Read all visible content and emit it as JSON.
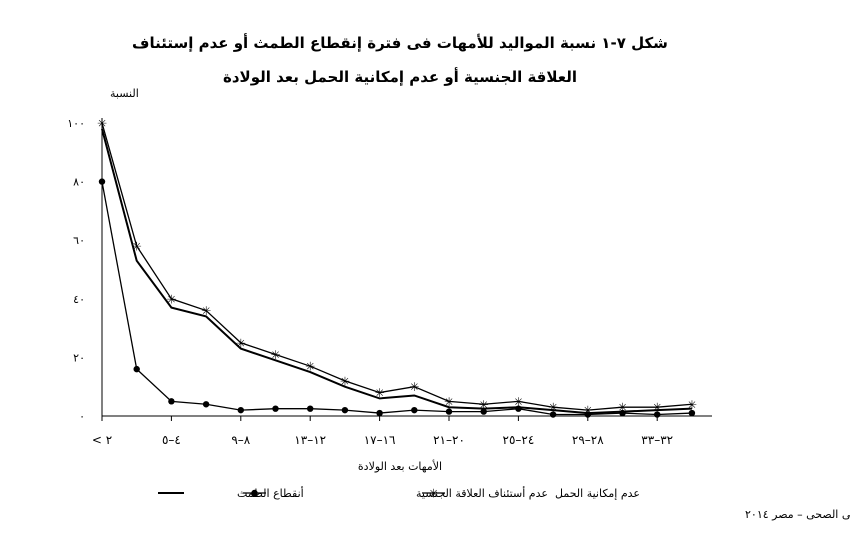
{
  "chart_data": {
    "type": "line",
    "title_line1": "شكل ٧-١  نسبة المواليد للأمهات فى فترة إنقطاع الطمث أو عدم إستئناف",
    "title_line2": "العلاقة الجنسية أو عدم إمكانية الحمل بعد الولادة",
    "ylabel": "النسبة",
    "xlabel": "الأمهات بعد الولادة",
    "source": "المسح السكانى الصحى – مصر ٢٠١٤",
    "ylim": [
      0,
      100
    ],
    "yticks": [
      {
        "value": 0,
        "label": "٠"
      },
      {
        "value": 20,
        "label": "٢٠"
      },
      {
        "value": 40,
        "label": "٤٠"
      },
      {
        "value": 60,
        "label": "٦٠"
      },
      {
        "value": 80,
        "label": "٨٠"
      },
      {
        "value": 100,
        "label": "١٠٠"
      }
    ],
    "xticks": [
      {
        "index": 0,
        "label": "< ٢"
      },
      {
        "index": 2,
        "label": "٤–٥"
      },
      {
        "index": 4,
        "label": "٨–٩"
      },
      {
        "index": 6,
        "label": "١٢–١٣"
      },
      {
        "index": 8,
        "label": "١٦–١٧"
      },
      {
        "index": 10,
        "label": "٢٠–٢١"
      },
      {
        "index": 12,
        "label": "٢٤–٢٥"
      },
      {
        "index": 14,
        "label": "٢٨–٢٩"
      },
      {
        "index": 16,
        "label": "٣٢–٣٣"
      }
    ],
    "series": [
      {
        "name": "عدم إمكانية الحمل",
        "marker": "star",
        "values": [
          100,
          58,
          40,
          36,
          25,
          21,
          17,
          12,
          8,
          10,
          5,
          4,
          5,
          3,
          2,
          3,
          3,
          4
        ]
      },
      {
        "name": "عدم أستئناف العلاقة الجنسية",
        "marker": "dot",
        "values": [
          80,
          16,
          5,
          4,
          2,
          2.5,
          2.5,
          2,
          1,
          2,
          1.5,
          1.5,
          2.5,
          0.5,
          0.5,
          1,
          0.5,
          1
        ]
      },
      {
        "name": "أنقطاع الطمث",
        "marker": "none",
        "values": [
          98,
          53,
          37,
          34,
          23,
          19,
          15,
          10,
          6,
          7,
          3,
          2.5,
          3,
          2,
          1,
          1.5,
          2,
          2.5
        ]
      }
    ]
  }
}
